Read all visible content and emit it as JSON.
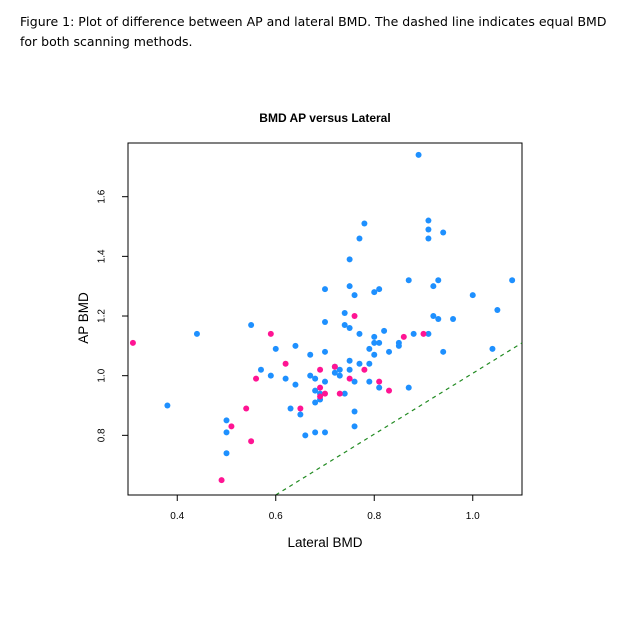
{
  "caption": "Figure 1: Plot of difference between AP and lateral BMD. The dashed line indicates equal BMD for both scanning methods.",
  "colors": {
    "blue": "#1e90ff",
    "pink": "#ff1493",
    "line": "#228b22",
    "axis": "#000000"
  },
  "chart_data": {
    "type": "scatter",
    "title": "BMD AP versus Lateral",
    "xlabel": "Lateral BMD",
    "ylabel": "AP BMD",
    "xlim": [
      0.3,
      1.1
    ],
    "ylim": [
      0.6,
      1.78
    ],
    "xticks": [
      0.4,
      0.6,
      0.8,
      1.0
    ],
    "xtick_labels": [
      "0.4",
      "0.6",
      "0.8",
      "1.0"
    ],
    "yticks": [
      0.8,
      1.0,
      1.2,
      1.4,
      1.6
    ],
    "ytick_labels": [
      "0.8",
      "1.0",
      "1.2",
      "1.4",
      "1.6"
    ],
    "reference_line": {
      "label": "equal BMD",
      "style": "dashed",
      "points": [
        [
          0.6,
          0.6
        ],
        [
          1.1,
          1.11
        ]
      ]
    },
    "series": [
      {
        "name": "blue",
        "points": [
          [
            0.38,
            0.9
          ],
          [
            0.44,
            1.14
          ],
          [
            0.5,
            0.85
          ],
          [
            0.5,
            0.81
          ],
          [
            0.5,
            0.74
          ],
          [
            0.55,
            1.17
          ],
          [
            0.57,
            1.02
          ],
          [
            0.59,
            1.0
          ],
          [
            0.6,
            1.09
          ],
          [
            0.62,
            0.99
          ],
          [
            0.63,
            0.89
          ],
          [
            0.64,
            1.1
          ],
          [
            0.64,
            0.97
          ],
          [
            0.65,
            0.87
          ],
          [
            0.66,
            0.8
          ],
          [
            0.67,
            1.07
          ],
          [
            0.67,
            1.0
          ],
          [
            0.68,
            0.81
          ],
          [
            0.68,
            0.99
          ],
          [
            0.68,
            0.95
          ],
          [
            0.68,
            0.91
          ],
          [
            0.69,
            0.94
          ],
          [
            0.69,
            0.92
          ],
          [
            0.7,
            0.81
          ],
          [
            0.7,
            0.98
          ],
          [
            0.7,
            1.29
          ],
          [
            0.7,
            1.18
          ],
          [
            0.7,
            1.08
          ],
          [
            0.72,
            1.03
          ],
          [
            0.72,
            1.01
          ],
          [
            0.73,
            1.0
          ],
          [
            0.73,
            1.02
          ],
          [
            0.74,
            1.21
          ],
          [
            0.74,
            1.17
          ],
          [
            0.74,
            0.94
          ],
          [
            0.75,
            1.3
          ],
          [
            0.75,
            1.39
          ],
          [
            0.75,
            1.16
          ],
          [
            0.75,
            1.05
          ],
          [
            0.75,
            1.02
          ],
          [
            0.76,
            1.27
          ],
          [
            0.76,
            0.98
          ],
          [
            0.76,
            0.88
          ],
          [
            0.76,
            0.83
          ],
          [
            0.77,
            1.46
          ],
          [
            0.77,
            1.14
          ],
          [
            0.77,
            1.04
          ],
          [
            0.78,
            1.51
          ],
          [
            0.79,
            1.09
          ],
          [
            0.79,
            0.98
          ],
          [
            0.79,
            1.04
          ],
          [
            0.8,
            1.28
          ],
          [
            0.8,
            1.13
          ],
          [
            0.8,
            1.11
          ],
          [
            0.8,
            1.07
          ],
          [
            0.81,
            1.29
          ],
          [
            0.81,
            1.11
          ],
          [
            0.81,
            0.96
          ],
          [
            0.82,
            1.15
          ],
          [
            0.83,
            1.08
          ],
          [
            0.85,
            1.11
          ],
          [
            0.85,
            1.1
          ],
          [
            0.87,
            1.32
          ],
          [
            0.87,
            0.96
          ],
          [
            0.89,
            1.74
          ],
          [
            0.91,
            1.52
          ],
          [
            0.91,
            1.49
          ],
          [
            0.91,
            1.46
          ],
          [
            0.92,
            1.3
          ],
          [
            0.92,
            1.2
          ],
          [
            0.93,
            1.32
          ],
          [
            0.93,
            1.19
          ],
          [
            0.94,
            1.08
          ],
          [
            0.94,
            1.48
          ],
          [
            0.96,
            1.19
          ],
          [
            1.0,
            1.27
          ],
          [
            1.04,
            1.09
          ],
          [
            1.05,
            1.22
          ],
          [
            1.08,
            1.32
          ],
          [
            0.91,
            1.14
          ],
          [
            0.88,
            1.14
          ]
        ]
      },
      {
        "name": "pink",
        "points": [
          [
            0.31,
            1.11
          ],
          [
            0.49,
            0.65
          ],
          [
            0.51,
            0.83
          ],
          [
            0.54,
            0.89
          ],
          [
            0.55,
            0.78
          ],
          [
            0.56,
            0.99
          ],
          [
            0.59,
            1.14
          ],
          [
            0.62,
            1.04
          ],
          [
            0.65,
            0.89
          ],
          [
            0.69,
            1.02
          ],
          [
            0.69,
            0.96
          ],
          [
            0.69,
            0.93
          ],
          [
            0.7,
            0.94
          ],
          [
            0.72,
            1.03
          ],
          [
            0.73,
            0.94
          ],
          [
            0.75,
            0.99
          ],
          [
            0.76,
            1.2
          ],
          [
            0.78,
            1.02
          ],
          [
            0.81,
            0.98
          ],
          [
            0.83,
            0.95
          ],
          [
            0.86,
            1.13
          ],
          [
            0.9,
            1.14
          ]
        ]
      }
    ]
  }
}
